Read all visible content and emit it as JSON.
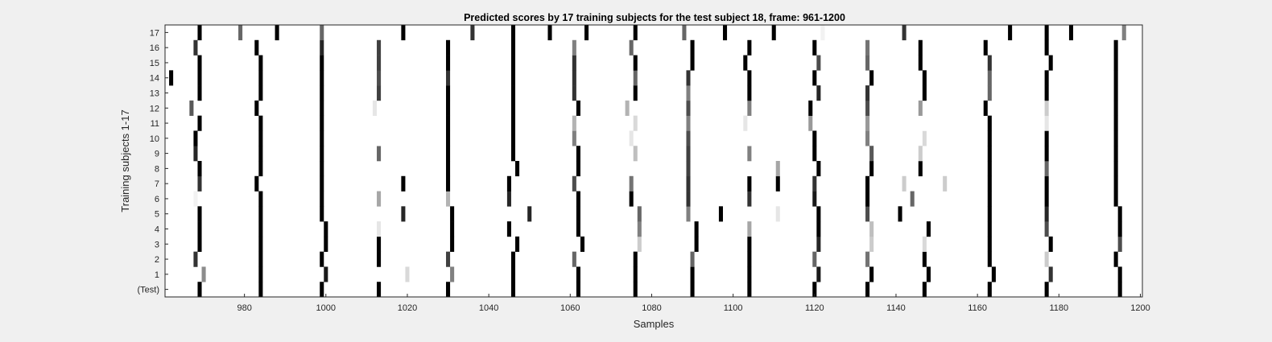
{
  "chart_data": {
    "type": "heatmap",
    "title": "Predicted scores by 17 training subjects for the test subject 18, frame: 961-1200",
    "xlabel": "Samples",
    "ylabel": "Training subjects 1-17",
    "xlim": [
      961,
      1200
    ],
    "x_ticks": [
      980,
      1000,
      1020,
      1040,
      1060,
      1080,
      1100,
      1120,
      1140,
      1160,
      1180,
      1200
    ],
    "rows": [
      "(Test)",
      "1",
      "2",
      "3",
      "4",
      "5",
      "6",
      "7",
      "8",
      "9",
      "10",
      "11",
      "12",
      "13",
      "14",
      "15",
      "16",
      "17"
    ],
    "colormap": "gray (black = high score, white = low score)",
    "cell_width_samples": 1,
    "events": {
      "(Test)": [
        [
          969,
          1
        ],
        [
          984,
          1
        ],
        [
          999,
          1
        ],
        [
          1013,
          1
        ],
        [
          1030,
          1
        ],
        [
          1046,
          1
        ],
        [
          1062,
          1
        ],
        [
          1076,
          1
        ],
        [
          1090,
          1
        ],
        [
          1104,
          1
        ],
        [
          1120,
          1
        ],
        [
          1133,
          1
        ],
        [
          1147,
          1
        ],
        [
          1163,
          1
        ],
        [
          1177,
          1
        ],
        [
          1195,
          1
        ]
      ],
      "1": [
        [
          970,
          0.45
        ],
        [
          984,
          1
        ],
        [
          1000,
          0.9
        ],
        [
          1020,
          0.15
        ],
        [
          1031,
          0.5
        ],
        [
          1046,
          1
        ],
        [
          1062,
          1
        ],
        [
          1076,
          1
        ],
        [
          1090,
          1
        ],
        [
          1104,
          1
        ],
        [
          1121,
          0.9
        ],
        [
          1134,
          1
        ],
        [
          1148,
          1
        ],
        [
          1164,
          1
        ],
        [
          1178,
          0.8
        ],
        [
          1195,
          1
        ]
      ],
      "2": [
        [
          968,
          0.8
        ],
        [
          984,
          1
        ],
        [
          999,
          1
        ],
        [
          1013,
          1
        ],
        [
          1030,
          0.75
        ],
        [
          1046,
          1
        ],
        [
          1061,
          0.6
        ],
        [
          1076,
          1
        ],
        [
          1090,
          0.6
        ],
        [
          1104,
          1
        ],
        [
          1120,
          0.6
        ],
        [
          1133,
          0.55
        ],
        [
          1147,
          1
        ],
        [
          1163,
          1
        ],
        [
          1177,
          0.2
        ],
        [
          1194,
          1
        ]
      ],
      "3": [
        [
          969,
          1
        ],
        [
          984,
          1
        ],
        [
          1000,
          1
        ],
        [
          1013,
          1
        ],
        [
          1031,
          1
        ],
        [
          1047,
          1
        ],
        [
          1063,
          1
        ],
        [
          1077,
          0.2
        ],
        [
          1091,
          1
        ],
        [
          1104,
          1
        ],
        [
          1121,
          0.85
        ],
        [
          1134,
          0.2
        ],
        [
          1147,
          0.15
        ],
        [
          1163,
          1
        ],
        [
          1178,
          1
        ],
        [
          1195,
          0.7
        ]
      ],
      "4": [
        [
          969,
          1
        ],
        [
          984,
          1
        ],
        [
          1000,
          1
        ],
        [
          1013,
          0.1
        ],
        [
          1031,
          1
        ],
        [
          1045,
          1
        ],
        [
          1062,
          1
        ],
        [
          1077,
          0.5
        ],
        [
          1091,
          1
        ],
        [
          1104,
          0.35
        ],
        [
          1121,
          1
        ],
        [
          1134,
          0.25
        ],
        [
          1148,
          1
        ],
        [
          1163,
          1
        ],
        [
          1177,
          0.7
        ],
        [
          1195,
          1
        ]
      ],
      "5": [
        [
          969,
          1
        ],
        [
          984,
          1
        ],
        [
          999,
          1
        ],
        [
          1019,
          0.85
        ],
        [
          1031,
          1
        ],
        [
          1050,
          0.85
        ],
        [
          1062,
          1
        ],
        [
          1077,
          0.6
        ],
        [
          1089,
          0.5
        ],
        [
          1097,
          1
        ],
        [
          1111,
          0.1
        ],
        [
          1121,
          1
        ],
        [
          1133,
          0.7
        ],
        [
          1141,
          1
        ],
        [
          1163,
          1
        ],
        [
          1177,
          0.85
        ],
        [
          1195,
          1
        ]
      ],
      "6": [
        [
          968,
          0.05
        ],
        [
          984,
          1
        ],
        [
          999,
          1
        ],
        [
          1013,
          0.35
        ],
        [
          1030,
          0.3
        ],
        [
          1045,
          0.85
        ],
        [
          1062,
          1
        ],
        [
          1075,
          1
        ],
        [
          1089,
          0.8
        ],
        [
          1104,
          0.8
        ],
        [
          1120,
          0.9
        ],
        [
          1133,
          1
        ],
        [
          1144,
          0.6
        ],
        [
          1163,
          1
        ],
        [
          1177,
          1
        ],
        [
          1194,
          1
        ]
      ],
      "7": [
        [
          969,
          0.8
        ],
        [
          983,
          1
        ],
        [
          999,
          1
        ],
        [
          1019,
          1
        ],
        [
          1030,
          1
        ],
        [
          1045,
          1
        ],
        [
          1061,
          0.7
        ],
        [
          1075,
          0.55
        ],
        [
          1089,
          0.8
        ],
        [
          1104,
          1
        ],
        [
          1111,
          1
        ],
        [
          1120,
          0.8
        ],
        [
          1133,
          1
        ],
        [
          1142,
          0.2
        ],
        [
          1152,
          0.2
        ],
        [
          1163,
          1
        ],
        [
          1177,
          1
        ],
        [
          1194,
          1
        ]
      ],
      "8": [
        [
          969,
          1
        ],
        [
          984,
          1
        ],
        [
          999,
          1
        ],
        [
          1013,
          0.0
        ],
        [
          1030,
          1
        ],
        [
          1047,
          1
        ],
        [
          1062,
          1
        ],
        [
          1076,
          0.0
        ],
        [
          1089,
          0.75
        ],
        [
          1104,
          0.0
        ],
        [
          1111,
          0.35
        ],
        [
          1121,
          1
        ],
        [
          1134,
          1
        ],
        [
          1146,
          1
        ],
        [
          1163,
          1
        ],
        [
          1177,
          0.6
        ],
        [
          1194,
          1
        ]
      ],
      "9": [
        [
          968,
          0.85
        ],
        [
          984,
          1
        ],
        [
          999,
          1
        ],
        [
          1013,
          0.6
        ],
        [
          1030,
          1
        ],
        [
          1046,
          1
        ],
        [
          1062,
          1
        ],
        [
          1076,
          0.25
        ],
        [
          1089,
          0.75
        ],
        [
          1104,
          0.5
        ],
        [
          1120,
          1
        ],
        [
          1134,
          0.65
        ],
        [
          1146,
          0.2
        ],
        [
          1163,
          1
        ],
        [
          1177,
          1
        ],
        [
          1194,
          1
        ]
      ],
      "10": [
        [
          968,
          1
        ],
        [
          984,
          1
        ],
        [
          999,
          1
        ],
        [
          1013,
          0.0
        ],
        [
          1030,
          1
        ],
        [
          1046,
          1
        ],
        [
          1061,
          0.5
        ],
        [
          1075,
          0.1
        ],
        [
          1089,
          0.7
        ],
        [
          1104,
          0.0
        ],
        [
          1120,
          1
        ],
        [
          1133,
          0.5
        ],
        [
          1147,
          0.15
        ],
        [
          1163,
          1
        ],
        [
          1177,
          1
        ],
        [
          1194,
          1
        ]
      ],
      "11": [
        [
          969,
          1
        ],
        [
          984,
          1
        ],
        [
          999,
          1
        ],
        [
          1013,
          0.0
        ],
        [
          1030,
          1
        ],
        [
          1046,
          1
        ],
        [
          1061,
          0.3
        ],
        [
          1076,
          0.15
        ],
        [
          1089,
          0.5
        ],
        [
          1103,
          0.1
        ],
        [
          1119,
          0.4
        ],
        [
          1133,
          0.4
        ],
        [
          1147,
          0.0
        ],
        [
          1163,
          1
        ],
        [
          1177,
          0.1
        ],
        [
          1194,
          1
        ]
      ],
      "12": [
        [
          967,
          0.65
        ],
        [
          983,
          1
        ],
        [
          999,
          1
        ],
        [
          1012,
          0.1
        ],
        [
          1030,
          1
        ],
        [
          1046,
          1
        ],
        [
          1062,
          1
        ],
        [
          1074,
          0.3
        ],
        [
          1089,
          0.7
        ],
        [
          1104,
          0.5
        ],
        [
          1119,
          1
        ],
        [
          1133,
          0.7
        ],
        [
          1146,
          0.4
        ],
        [
          1162,
          1
        ],
        [
          1177,
          0.2
        ],
        [
          1194,
          1
        ]
      ],
      "13": [
        [
          969,
          1
        ],
        [
          984,
          1
        ],
        [
          999,
          1
        ],
        [
          1013,
          0.75
        ],
        [
          1030,
          1
        ],
        [
          1046,
          1
        ],
        [
          1061,
          0.8
        ],
        [
          1076,
          1
        ],
        [
          1089,
          0.5
        ],
        [
          1104,
          1
        ],
        [
          1121,
          0.85
        ],
        [
          1133,
          0.8
        ],
        [
          1147,
          1
        ],
        [
          1163,
          0.6
        ],
        [
          1177,
          1
        ],
        [
          1194,
          1
        ]
      ],
      "14": [
        [
          962,
          1
        ],
        [
          969,
          1
        ],
        [
          984,
          1
        ],
        [
          999,
          1
        ],
        [
          1013,
          0.7
        ],
        [
          1030,
          0.8
        ],
        [
          1046,
          1
        ],
        [
          1061,
          0.8
        ],
        [
          1076,
          0.6
        ],
        [
          1089,
          0.8
        ],
        [
          1104,
          1
        ],
        [
          1120,
          1
        ],
        [
          1134,
          1
        ],
        [
          1147,
          1
        ],
        [
          1163,
          0.6
        ],
        [
          1177,
          1
        ],
        [
          1194,
          1
        ]
      ],
      "15": [
        [
          969,
          1
        ],
        [
          984,
          1
        ],
        [
          999,
          1
        ],
        [
          1013,
          0.75
        ],
        [
          1030,
          1
        ],
        [
          1046,
          1
        ],
        [
          1061,
          0.8
        ],
        [
          1076,
          1
        ],
        [
          1090,
          1
        ],
        [
          1103,
          1
        ],
        [
          1121,
          0.7
        ],
        [
          1133,
          0.6
        ],
        [
          1146,
          1
        ],
        [
          1163,
          0.8
        ],
        [
          1178,
          1
        ],
        [
          1194,
          1
        ]
      ],
      "16": [
        [
          968,
          0.8
        ],
        [
          983,
          1
        ],
        [
          999,
          0.85
        ],
        [
          1013,
          0.75
        ],
        [
          1030,
          1
        ],
        [
          1046,
          1
        ],
        [
          1061,
          0.5
        ],
        [
          1075,
          0.6
        ],
        [
          1090,
          1
        ],
        [
          1104,
          1
        ],
        [
          1120,
          1
        ],
        [
          1133,
          0.55
        ],
        [
          1146,
          1
        ],
        [
          1162,
          1
        ],
        [
          1177,
          1
        ],
        [
          1194,
          1
        ]
      ],
      "17": [
        [
          969,
          1
        ],
        [
          979,
          0.6
        ],
        [
          988,
          1
        ],
        [
          999,
          0.6
        ],
        [
          1019,
          1
        ],
        [
          1036,
          0.8
        ],
        [
          1046,
          1
        ],
        [
          1055,
          1
        ],
        [
          1064,
          1
        ],
        [
          1076,
          1
        ],
        [
          1088,
          0.6
        ],
        [
          1098,
          1
        ],
        [
          1110,
          1
        ],
        [
          1122,
          0.05
        ],
        [
          1142,
          0.8
        ],
        [
          1168,
          1
        ],
        [
          1177,
          1
        ],
        [
          1183,
          1
        ],
        [
          1196,
          0.5
        ]
      ]
    }
  }
}
